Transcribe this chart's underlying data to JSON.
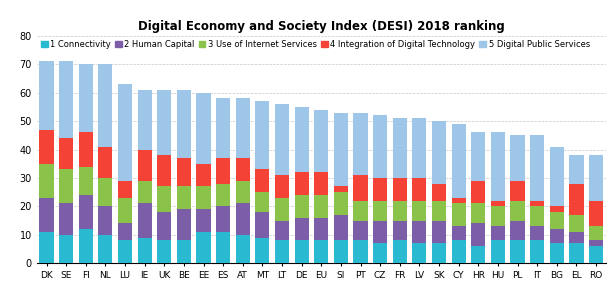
{
  "title": "Digital Economy and Society Index (DESI) 2018 ranking",
  "categories": [
    "DK",
    "SE",
    "FI",
    "NL",
    "LU",
    "IE",
    "UK",
    "BE",
    "EE",
    "ES",
    "AT",
    "MT",
    "LT",
    "DE",
    "EU",
    "SI",
    "PT",
    "CZ",
    "FR",
    "LV",
    "SK",
    "CY",
    "HR",
    "HU",
    "PL",
    "IT",
    "BG",
    "EL",
    "RO"
  ],
  "connectivity": [
    11,
    10,
    12,
    10,
    8,
    9,
    8,
    8,
    11,
    11,
    10,
    9,
    8,
    8,
    8,
    8,
    8,
    7,
    8,
    7,
    7,
    8,
    6,
    8,
    8,
    8,
    7,
    7,
    6
  ],
  "human_capital": [
    12,
    11,
    12,
    10,
    6,
    12,
    10,
    11,
    8,
    9,
    11,
    9,
    7,
    8,
    8,
    9,
    7,
    8,
    7,
    8,
    8,
    5,
    8,
    5,
    7,
    5,
    5,
    4,
    2
  ],
  "internet_use": [
    12,
    12,
    10,
    10,
    9,
    8,
    9,
    8,
    8,
    8,
    8,
    7,
    8,
    8,
    8,
    8,
    7,
    7,
    7,
    7,
    7,
    8,
    7,
    7,
    7,
    7,
    6,
    6,
    5
  ],
  "digital_tech": [
    12,
    11,
    12,
    11,
    6,
    11,
    11,
    10,
    8,
    9,
    8,
    8,
    8,
    8,
    8,
    2,
    9,
    8,
    8,
    8,
    6,
    2,
    8,
    2,
    7,
    2,
    2,
    11,
    9
  ],
  "digital_public": [
    24,
    27,
    24,
    29,
    34,
    21,
    23,
    24,
    25,
    21,
    21,
    24,
    25,
    23,
    22,
    26,
    22,
    22,
    21,
    21,
    22,
    26,
    17,
    24,
    16,
    23,
    21,
    10,
    16
  ],
  "colors": [
    "#29b9d0",
    "#7b5ea7",
    "#8bc34a",
    "#f44336",
    "#9ec6e8"
  ],
  "legend_labels": [
    "1 Connectivity",
    "2 Human Capital",
    "3 Use of Internet Services",
    "4 Integration of Digital Technology",
    "5 Digital Public Services"
  ],
  "ylim": [
    0,
    80
  ],
  "yticks": [
    0,
    10,
    20,
    30,
    40,
    50,
    60,
    70,
    80
  ],
  "background_color": "#ffffff",
  "grid_color": "#c8c8c8"
}
